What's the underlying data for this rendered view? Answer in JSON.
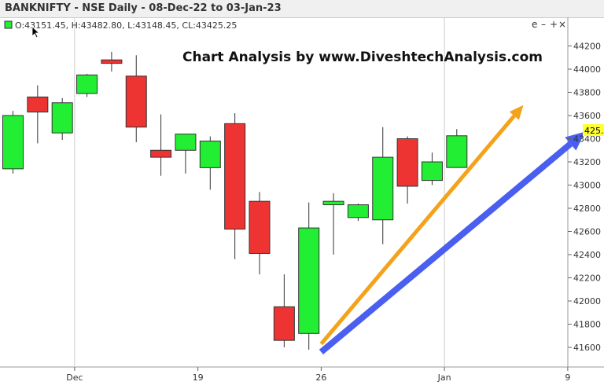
{
  "window": {
    "title": "BANKNIFTY - NSE Daily - 08-Dec-22 to 03-Jan-23"
  },
  "ohlc_readout": "O:43151.45, H:43482.80, L:43148.45, CL:43425.25",
  "panel_controls": {
    "collapse": "e",
    "minus": "–",
    "plus": "+",
    "close": "×"
  },
  "watermark": "Chart Analysis by www.DiveshtechAnalysis.com",
  "last_price_tag": "425.2",
  "colors": {
    "up": "#22ee33",
    "down": "#ee3333",
    "arrow_orange": "#f5a21b",
    "arrow_blue": "#4a5ef0",
    "price_tag": "#ffff33"
  },
  "chart_data": {
    "type": "candlestick",
    "y_ticks": [
      41600,
      41800,
      42000,
      42200,
      42400,
      42600,
      42800,
      43000,
      43200,
      43400,
      43600,
      43800,
      44000,
      44200
    ],
    "ylim": [
      41450,
      44300
    ],
    "x_ticks": [
      {
        "label": "Dec",
        "index": 2.5
      },
      {
        "label": "19",
        "index": 7.5
      },
      {
        "label": "26",
        "index": 12.5
      },
      {
        "label": "Jan",
        "index": 17.5
      },
      {
        "label": "9",
        "index": 22.5
      }
    ],
    "gridlines": "vertical at month starts",
    "candles": [
      {
        "index": 0,
        "open": 43140,
        "high": 43640,
        "low": 43100,
        "close": 43600
      },
      {
        "index": 1,
        "open": 43760,
        "high": 43860,
        "low": 43360,
        "close": 43630
      },
      {
        "index": 2,
        "open": 43450,
        "high": 43750,
        "low": 43390,
        "close": 43710
      },
      {
        "index": 3,
        "open": 43790,
        "high": 43960,
        "low": 43760,
        "close": 43950
      },
      {
        "index": 4,
        "open": 44080,
        "high": 44150,
        "low": 43980,
        "close": 44050
      },
      {
        "index": 5,
        "open": 43940,
        "high": 44120,
        "low": 43370,
        "close": 43500
      },
      {
        "index": 6,
        "open": 43300,
        "high": 43610,
        "low": 43080,
        "close": 43240
      },
      {
        "index": 7,
        "open": 43300,
        "high": 43440,
        "low": 43100,
        "close": 43440
      },
      {
        "index": 8,
        "open": 43150,
        "high": 43420,
        "low": 42960,
        "close": 43380
      },
      {
        "index": 9,
        "open": 43530,
        "high": 43620,
        "low": 42360,
        "close": 42620
      },
      {
        "index": 10,
        "open": 42860,
        "high": 42940,
        "low": 42230,
        "close": 42410
      },
      {
        "index": 11,
        "open": 41950,
        "high": 42230,
        "low": 41600,
        "close": 41660
      },
      {
        "index": 12,
        "open": 41720,
        "high": 42850,
        "low": 41580,
        "close": 42630
      },
      {
        "index": 13,
        "open": 42830,
        "high": 42930,
        "low": 42400,
        "close": 42860
      },
      {
        "index": 14,
        "open": 42720,
        "high": 42840,
        "low": 42690,
        "close": 42830
      },
      {
        "index": 15,
        "open": 42700,
        "high": 43500,
        "low": 42490,
        "close": 43240
      },
      {
        "index": 16,
        "open": 43400,
        "high": 43420,
        "low": 42840,
        "close": 42990
      },
      {
        "index": 17,
        "open": 43040,
        "high": 43280,
        "low": 43000,
        "close": 43200
      },
      {
        "index": 18,
        "open": 43151.45,
        "high": 43482.8,
        "low": 43148.45,
        "close": 43425.25
      }
    ],
    "arrows": [
      {
        "color": "orange",
        "from": {
          "index": 12.5,
          "value": 41630
        },
        "to": {
          "index": 20.7,
          "value": 43690
        }
      },
      {
        "color": "blue",
        "from": {
          "index": 12.5,
          "value": 41560
        },
        "to": {
          "index": 23.2,
          "value": 43460
        }
      }
    ]
  }
}
